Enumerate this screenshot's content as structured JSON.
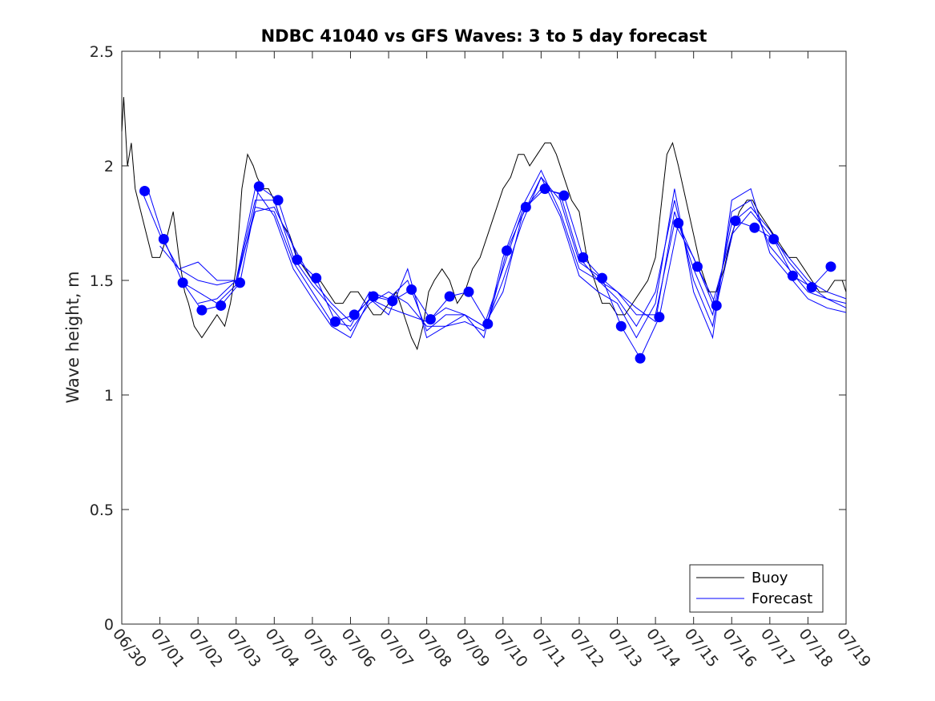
{
  "chart_data": {
    "type": "line",
    "title": "NDBC 41040 vs GFS Waves: 3 to 5 day forecast",
    "xlabel": "",
    "ylabel": "Wave height, m",
    "ylim": [
      0,
      2.5
    ],
    "yticks": [
      "0",
      "0.5",
      "1",
      "1.5",
      "2",
      "2.5"
    ],
    "xticks": [
      "06/30",
      "07/01",
      "07/02",
      "07/03",
      "07/04",
      "07/05",
      "07/06",
      "07/07",
      "07/08",
      "07/09",
      "07/10",
      "07/11",
      "07/12",
      "07/13",
      "07/14",
      "07/15",
      "07/16",
      "07/17",
      "07/18",
      "07/19"
    ],
    "grid": false,
    "legend_position": "bottom-right",
    "series": [
      {
        "name": "Buoy",
        "color": "#000000",
        "style": "line",
        "x": [
          0,
          0.05,
          0.15,
          0.25,
          0.35,
          0.5,
          0.65,
          0.8,
          1.0,
          1.2,
          1.35,
          1.5,
          1.65,
          1.75,
          1.9,
          2.1,
          2.3,
          2.5,
          2.7,
          2.85,
          3.0,
          3.15,
          3.3,
          3.45,
          3.55,
          3.7,
          3.85,
          4.0,
          4.2,
          4.4,
          4.6,
          4.8,
          5.0,
          5.2,
          5.4,
          5.6,
          5.8,
          6.0,
          6.2,
          6.4,
          6.6,
          6.8,
          7.0,
          7.2,
          7.4,
          7.6,
          7.75,
          7.9,
          8.05,
          8.2,
          8.4,
          8.6,
          8.8,
          9.0,
          9.2,
          9.4,
          9.6,
          9.8,
          10.0,
          10.2,
          10.3,
          10.4,
          10.55,
          10.7,
          10.9,
          11.1,
          11.25,
          11.4,
          11.6,
          11.8,
          12.0,
          12.2,
          12.4,
          12.6,
          12.8,
          13.0,
          13.2,
          13.4,
          13.6,
          13.8,
          14.0,
          14.2,
          14.3,
          14.45,
          14.6,
          14.8,
          15.0,
          15.2,
          15.4,
          15.6,
          15.8,
          16.0,
          16.2,
          16.4,
          16.55,
          16.7,
          16.9,
          17.1,
          17.3,
          17.5,
          17.7,
          17.9,
          18.1,
          18.3,
          18.5,
          18.7,
          18.9,
          19.0
        ],
        "y": [
          2.15,
          2.3,
          2.0,
          2.1,
          1.9,
          1.8,
          1.7,
          1.6,
          1.6,
          1.7,
          1.8,
          1.6,
          1.45,
          1.4,
          1.3,
          1.25,
          1.3,
          1.35,
          1.3,
          1.4,
          1.55,
          1.9,
          2.05,
          2.0,
          1.95,
          1.9,
          1.9,
          1.85,
          1.75,
          1.7,
          1.6,
          1.55,
          1.5,
          1.5,
          1.45,
          1.4,
          1.4,
          1.45,
          1.45,
          1.4,
          1.35,
          1.35,
          1.4,
          1.45,
          1.35,
          1.25,
          1.2,
          1.3,
          1.45,
          1.5,
          1.55,
          1.5,
          1.4,
          1.45,
          1.55,
          1.6,
          1.7,
          1.8,
          1.9,
          1.95,
          2.0,
          2.05,
          2.05,
          2.0,
          2.05,
          2.1,
          2.1,
          2.05,
          1.95,
          1.85,
          1.8,
          1.6,
          1.5,
          1.4,
          1.4,
          1.35,
          1.35,
          1.4,
          1.45,
          1.5,
          1.6,
          1.9,
          2.05,
          2.1,
          2.0,
          1.85,
          1.7,
          1.55,
          1.45,
          1.45,
          1.55,
          1.7,
          1.8,
          1.85,
          1.85,
          1.8,
          1.75,
          1.7,
          1.65,
          1.6,
          1.6,
          1.55,
          1.5,
          1.45,
          1.45,
          1.5,
          1.5,
          1.45
        ]
      },
      {
        "name": "Forecast",
        "color": "#0000ff",
        "style": "line",
        "runs": [
          {
            "x": [
              0.5,
              1.0,
              1.5,
              2.0,
              2.5,
              3.0,
              3.5,
              4.0,
              4.5,
              5.0,
              5.5,
              6.0,
              6.5,
              7.0,
              7.5,
              8.0,
              8.5,
              9.0,
              9.5,
              10.0,
              10.5,
              11.0,
              11.5,
              12.0,
              12.5,
              13.0,
              13.5,
              14.0,
              14.5,
              15.0,
              15.5,
              16.0,
              16.5,
              17.0,
              17.5,
              18.0,
              18.5,
              19.0
            ],
            "y": [
              1.9,
              1.7,
              1.55,
              1.5,
              1.48,
              1.5,
              1.8,
              1.82,
              1.65,
              1.5,
              1.4,
              1.32,
              1.42,
              1.38,
              1.35,
              1.32,
              1.38,
              1.35,
              1.3,
              1.55,
              1.8,
              1.9,
              1.88,
              1.6,
              1.5,
              1.45,
              1.35,
              1.35,
              1.75,
              1.6,
              1.4,
              1.7,
              1.8,
              1.7,
              1.6,
              1.5,
              1.45,
              1.42
            ]
          },
          {
            "x": [
              1.0,
              1.5,
              2.0,
              2.5,
              3.0,
              3.5,
              4.0,
              4.5,
              5.0,
              5.5,
              6.0,
              6.5,
              7.0,
              7.5,
              8.0,
              8.5,
              9.0,
              9.5,
              10.0,
              10.5,
              11.0,
              11.5,
              12.0,
              12.5,
              13.0,
              13.5,
              14.0,
              14.5,
              15.0,
              15.5,
              16.0,
              16.5,
              17.0,
              17.5,
              18.0,
              18.5,
              19.0
            ],
            "y": [
              1.65,
              1.55,
              1.58,
              1.5,
              1.5,
              1.85,
              1.85,
              1.6,
              1.48,
              1.38,
              1.28,
              1.4,
              1.45,
              1.4,
              1.3,
              1.3,
              1.32,
              1.28,
              1.5,
              1.75,
              1.95,
              1.85,
              1.58,
              1.52,
              1.45,
              1.38,
              1.32,
              1.8,
              1.55,
              1.35,
              1.75,
              1.82,
              1.72,
              1.58,
              1.48,
              1.42,
              1.38
            ]
          },
          {
            "x": [
              1.5,
              2.0,
              2.5,
              3.0,
              3.5,
              4.0,
              4.5,
              5.0,
              5.5,
              6.0,
              6.5,
              7.0,
              7.5,
              8.0,
              8.5,
              9.0,
              9.5,
              10.0,
              10.5,
              11.0,
              11.5,
              12.0,
              12.5,
              13.0,
              13.5,
              14.0,
              14.5,
              15.0,
              15.5,
              16.0,
              16.5,
              17.0,
              17.5,
              18.0,
              18.5,
              19.0
            ],
            "y": [
              1.5,
              1.45,
              1.4,
              1.48,
              1.82,
              1.8,
              1.58,
              1.45,
              1.32,
              1.3,
              1.45,
              1.42,
              1.5,
              1.28,
              1.35,
              1.35,
              1.25,
              1.6,
              1.82,
              1.98,
              1.8,
              1.55,
              1.5,
              1.42,
              1.3,
              1.45,
              1.85,
              1.5,
              1.3,
              1.8,
              1.85,
              1.65,
              1.55,
              1.45,
              1.42,
              1.4
            ]
          },
          {
            "x": [
              2.0,
              2.5,
              3.0,
              3.5,
              4.0,
              4.5,
              5.0,
              5.5,
              6.0,
              6.5,
              7.0,
              7.5,
              8.0,
              8.5,
              9.0,
              9.5,
              10.0,
              10.5,
              11.0,
              11.5,
              12.0,
              12.5,
              13.0,
              13.5,
              14.0,
              14.5,
              15.0,
              15.5,
              16.0,
              16.5,
              17.0,
              17.5,
              18.0,
              18.5,
              19.0
            ],
            "y": [
              1.4,
              1.42,
              1.5,
              1.9,
              1.78,
              1.55,
              1.42,
              1.3,
              1.25,
              1.42,
              1.35,
              1.55,
              1.25,
              1.3,
              1.35,
              1.3,
              1.45,
              1.78,
              1.95,
              1.78,
              1.52,
              1.45,
              1.4,
              1.25,
              1.4,
              1.9,
              1.45,
              1.25,
              1.85,
              1.9,
              1.62,
              1.52,
              1.42,
              1.38,
              1.36
            ]
          },
          {
            "x": [
              0.7,
              1.1,
              1.6,
              2.1,
              2.6,
              3.1,
              3.6,
              4.1,
              4.6,
              5.1,
              5.6,
              6.1,
              6.6,
              7.1,
              7.6,
              8.1,
              8.6,
              9.1,
              9.6,
              10.1,
              10.6,
              11.1,
              11.6,
              12.1,
              12.6,
              13.1,
              13.6,
              14.1,
              14.6,
              15.1,
              15.6,
              16.1,
              16.6,
              17.1,
              17.6,
              18.1,
              18.6
            ],
            "y": [
              1.89,
              1.68,
              1.49,
              1.37,
              1.39,
              1.49,
              1.91,
              1.85,
              1.59,
              1.51,
              1.32,
              1.35,
              1.43,
              1.41,
              1.46,
              1.33,
              1.43,
              1.45,
              1.31,
              1.63,
              1.82,
              1.9,
              1.87,
              1.6,
              1.51,
              1.3,
              1.16,
              1.34,
              1.75,
              1.56,
              1.39,
              1.76,
              1.73,
              1.68,
              1.52,
              1.47,
              1.56
            ]
          }
        ]
      }
    ],
    "markers": {
      "color": "#0000ff",
      "x": [
        0.6,
        1.1,
        1.6,
        2.1,
        2.6,
        3.1,
        3.6,
        4.1,
        4.6,
        5.1,
        5.6,
        6.1,
        6.6,
        7.1,
        7.6,
        8.1,
        8.6,
        9.1,
        9.6,
        10.1,
        10.6,
        11.1,
        11.6,
        12.1,
        12.6,
        13.1,
        13.6,
        14.1,
        14.6,
        15.1,
        15.6,
        16.1,
        16.6,
        17.1,
        17.6,
        18.1,
        18.6
      ],
      "y": [
        1.89,
        1.68,
        1.49,
        1.37,
        1.39,
        1.49,
        1.91,
        1.85,
        1.59,
        1.51,
        1.32,
        1.35,
        1.43,
        1.41,
        1.46,
        1.33,
        1.43,
        1.45,
        1.31,
        1.63,
        1.82,
        1.9,
        1.87,
        1.6,
        1.51,
        1.3,
        1.16,
        1.34,
        1.75,
        1.56,
        1.39,
        1.76,
        1.73,
        1.68,
        1.52,
        1.47,
        1.56
      ]
    }
  }
}
